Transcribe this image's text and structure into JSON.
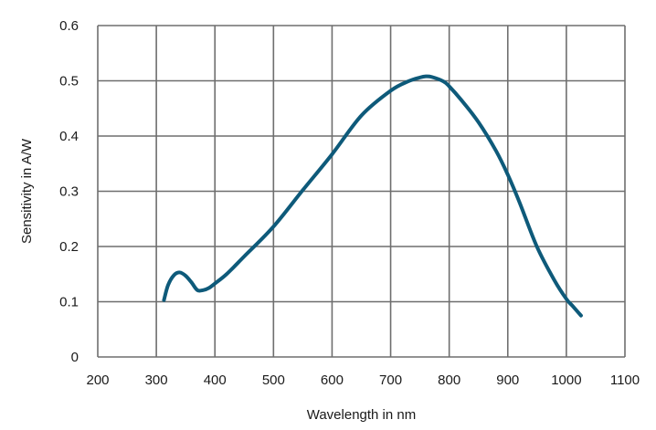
{
  "chart_data": {
    "type": "line",
    "title": "",
    "xlabel": "Wavelength in nm",
    "ylabel": "Sensitivity in A/W",
    "xlim": [
      200,
      1100
    ],
    "ylim": [
      0,
      0.6
    ],
    "x_ticks": [
      200,
      300,
      400,
      500,
      600,
      700,
      800,
      900,
      1000,
      1100
    ],
    "y_ticks": [
      0,
      0.1,
      0.2,
      0.3,
      0.4,
      0.5,
      0.6
    ],
    "x_tick_labels": [
      "200",
      "300",
      "400",
      "500",
      "600",
      "700",
      "800",
      "900",
      "1000",
      "1100"
    ],
    "y_tick_labels": [
      "0",
      "0.1",
      "0.2",
      "0.3",
      "0.4",
      "0.5",
      "0.6"
    ],
    "grid": true,
    "legend": "none",
    "series": [
      {
        "color": "#0e5a7a",
        "x": [
          313,
          320,
          330,
          340,
          350,
          360,
          370,
          380,
          390,
          400,
          420,
          450,
          500,
          550,
          600,
          650,
          700,
          730,
          750,
          760,
          770,
          790,
          800,
          820,
          850,
          880,
          900,
          920,
          950,
          980,
          1000,
          1010,
          1025
        ],
        "y": [
          0.103,
          0.13,
          0.148,
          0.153,
          0.147,
          0.135,
          0.121,
          0.121,
          0.125,
          0.133,
          0.15,
          0.182,
          0.236,
          0.302,
          0.367,
          0.437,
          0.482,
          0.499,
          0.506,
          0.508,
          0.507,
          0.499,
          0.49,
          0.466,
          0.425,
          0.373,
          0.33,
          0.28,
          0.199,
          0.138,
          0.105,
          0.093,
          0.075
        ]
      }
    ]
  }
}
